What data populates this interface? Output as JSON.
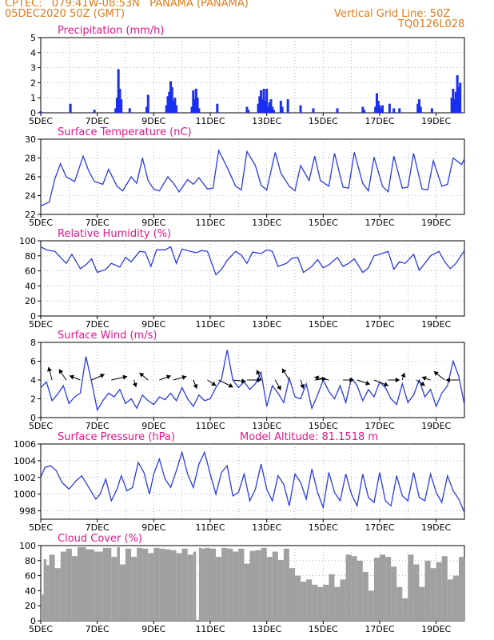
{
  "header": {
    "line1_left": "CPTEC:   079:41W-08:53N   PANAMA (PANAMA)",
    "line2_left": "05DEC2020 50Z (GMT)",
    "line2_right": "Vertical Grid Line: 50Z",
    "line3_right": "TQ0126L028"
  },
  "colors": {
    "header": "#e07b1a",
    "title": "#e0168c",
    "line": "#2b3ce0",
    "bar": "#1a2ff0",
    "cloud": "#a0a0a0",
    "grid": "#888888",
    "arrow": "#000000"
  },
  "x_labels": [
    "5DEC",
    "7DEC",
    "9DEC",
    "11DEC",
    "13DEC",
    "15DEC",
    "17DEC",
    "19DEC"
  ],
  "chart_data": [
    {
      "type": "bar",
      "title": "Precipitation (mm/h)",
      "ylim": [
        0,
        5
      ],
      "yticks": [
        0,
        1,
        2,
        3,
        4,
        5
      ],
      "x_range_days": [
        5,
        20
      ],
      "x": [
        5.0,
        6.05,
        6.9,
        7.65,
        7.7,
        7.75,
        7.8,
        7.85,
        8.15,
        8.75,
        8.8,
        9.45,
        9.5,
        9.55,
        9.6,
        9.65,
        9.7,
        9.75,
        9.8,
        10.35,
        10.4,
        10.45,
        10.5,
        10.55,
        10.6,
        11.25,
        12.3,
        12.35,
        12.7,
        12.75,
        12.8,
        12.85,
        12.9,
        12.95,
        13.0,
        13.05,
        13.1,
        13.15,
        13.2,
        13.25,
        13.5,
        13.55,
        13.75,
        14.2,
        14.65,
        15.5,
        16.4,
        16.45,
        16.85,
        16.9,
        16.95,
        17.0,
        17.05,
        17.1,
        17.35,
        17.5,
        17.7,
        18.35,
        18.4,
        18.45,
        18.85,
        19.55,
        19.6,
        19.65,
        19.7,
        19.75,
        19.8,
        19.85
      ],
      "values": [
        0.1,
        0.6,
        0.2,
        0.3,
        1.0,
        2.9,
        1.6,
        0.9,
        0.3,
        0.4,
        1.2,
        0.5,
        1.1,
        1.4,
        2.1,
        1.7,
        0.8,
        1.0,
        0.5,
        0.4,
        1.5,
        0.9,
        1.6,
        1.0,
        0.3,
        0.6,
        0.4,
        0.2,
        0.6,
        1.1,
        1.5,
        0.9,
        1.6,
        0.8,
        1.6,
        0.4,
        0.7,
        0.9,
        0.4,
        0.2,
        0.8,
        0.4,
        0.9,
        0.5,
        0.3,
        0.3,
        0.4,
        0.2,
        0.4,
        1.3,
        0.8,
        0.5,
        0.3,
        0.5,
        0.6,
        0.3,
        0.3,
        0.6,
        0.9,
        0.4,
        0.3,
        1.0,
        1.6,
        0.9,
        1.4,
        2.5,
        1.7,
        2.0
      ]
    },
    {
      "type": "line",
      "title": "Surface Temperature (nC)",
      "ylim": [
        22,
        30
      ],
      "yticks": [
        22,
        24,
        26,
        28,
        30
      ],
      "x": [
        5.0,
        5.3,
        5.5,
        5.7,
        5.9,
        6.2,
        6.5,
        6.7,
        6.9,
        7.2,
        7.4,
        7.7,
        7.9,
        8.2,
        8.4,
        8.6,
        8.8,
        9.0,
        9.2,
        9.5,
        9.7,
        9.9,
        10.2,
        10.4,
        10.6,
        10.9,
        11.1,
        11.3,
        11.6,
        11.9,
        12.1,
        12.3,
        12.6,
        12.8,
        13.0,
        13.3,
        13.5,
        13.8,
        14.0,
        14.2,
        14.5,
        14.7,
        14.9,
        15.2,
        15.4,
        15.7,
        15.9,
        16.1,
        16.4,
        16.6,
        16.8,
        17.1,
        17.3,
        17.5,
        17.8,
        18.0,
        18.2,
        18.5,
        18.7,
        18.9,
        19.2,
        19.4,
        19.6,
        19.9,
        20.0
      ],
      "values": [
        22.9,
        23.3,
        25.8,
        27.4,
        26.0,
        25.5,
        28.2,
        26.6,
        25.5,
        25.2,
        26.8,
        25.0,
        24.5,
        26.0,
        25.3,
        28.0,
        25.6,
        24.7,
        24.5,
        26.0,
        25.3,
        24.4,
        25.7,
        25.2,
        25.9,
        24.7,
        24.8,
        28.8,
        27.0,
        25.0,
        24.6,
        28.7,
        27.2,
        25.1,
        24.6,
        28.6,
        26.4,
        25.0,
        24.5,
        27.2,
        25.6,
        28.2,
        25.6,
        25.0,
        28.5,
        24.9,
        24.8,
        28.6,
        25.3,
        24.5,
        28.1,
        25.0,
        24.4,
        28.2,
        24.8,
        24.9,
        28.5,
        24.7,
        24.6,
        27.7,
        25.0,
        25.2,
        28.0,
        27.3,
        27.9
      ]
    },
    {
      "type": "line",
      "title": "Relative Humidity (%)",
      "ylim": [
        0,
        100
      ],
      "yticks": [
        0,
        20,
        40,
        60,
        80,
        100
      ],
      "x": [
        5.0,
        5.2,
        5.5,
        5.7,
        5.9,
        6.1,
        6.4,
        6.6,
        6.8,
        7.0,
        7.3,
        7.5,
        7.8,
        8.0,
        8.2,
        8.5,
        8.7,
        8.9,
        9.1,
        9.4,
        9.6,
        9.8,
        10.0,
        10.3,
        10.5,
        10.7,
        10.9,
        11.2,
        11.4,
        11.6,
        11.9,
        12.1,
        12.3,
        12.5,
        12.8,
        13.0,
        13.2,
        13.4,
        13.7,
        13.9,
        14.1,
        14.3,
        14.6,
        14.8,
        15.0,
        15.2,
        15.5,
        15.7,
        15.9,
        16.1,
        16.4,
        16.6,
        16.8,
        17.0,
        17.3,
        17.5,
        17.7,
        17.9,
        18.2,
        18.4,
        18.6,
        18.8,
        19.1,
        19.3,
        19.5,
        19.7,
        20.0
      ],
      "values": [
        92,
        88,
        86,
        78,
        70,
        82,
        63,
        68,
        76,
        58,
        62,
        70,
        65,
        78,
        72,
        86,
        85,
        66,
        88,
        88,
        92,
        70,
        89,
        86,
        84,
        87,
        86,
        55,
        62,
        74,
        86,
        81,
        70,
        85,
        83,
        88,
        86,
        66,
        70,
        77,
        78,
        58,
        66,
        75,
        64,
        68,
        78,
        66,
        70,
        76,
        58,
        64,
        80,
        82,
        86,
        62,
        72,
        70,
        82,
        61,
        70,
        80,
        86,
        72,
        63,
        70,
        87
      ]
    },
    {
      "type": "line",
      "title": "Surface Wind (m/s)",
      "ylim": [
        0,
        8
      ],
      "yticks": [
        0,
        2,
        4,
        6,
        8
      ],
      "x": [
        5.0,
        5.2,
        5.4,
        5.6,
        5.8,
        6.0,
        6.2,
        6.4,
        6.6,
        6.8,
        7.0,
        7.2,
        7.4,
        7.6,
        7.8,
        8.0,
        8.2,
        8.4,
        8.6,
        8.8,
        9.0,
        9.2,
        9.4,
        9.6,
        9.8,
        10.0,
        10.2,
        10.4,
        10.6,
        10.8,
        11.0,
        11.2,
        11.4,
        11.6,
        11.8,
        12.0,
        12.2,
        12.4,
        12.6,
        12.8,
        13.0,
        13.2,
        13.4,
        13.6,
        13.8,
        14.0,
        14.2,
        14.4,
        14.6,
        14.8,
        15.0,
        15.2,
        15.4,
        15.6,
        15.8,
        16.0,
        16.2,
        16.4,
        16.6,
        16.8,
        17.0,
        17.2,
        17.4,
        17.6,
        17.8,
        18.0,
        18.2,
        18.4,
        18.6,
        18.8,
        19.0,
        19.2,
        19.4,
        19.6,
        19.8,
        20.0
      ],
      "values": [
        3.2,
        3.8,
        1.8,
        2.5,
        3.4,
        1.5,
        2.2,
        2.6,
        6.5,
        3.8,
        0.8,
        1.8,
        2.6,
        2.2,
        3.0,
        1.5,
        2.0,
        1.0,
        2.4,
        1.8,
        1.4,
        2.2,
        1.9,
        2.6,
        1.8,
        3.2,
        2.0,
        1.2,
        2.4,
        1.8,
        2.0,
        3.2,
        4.1,
        7.2,
        4.0,
        3.2,
        3.8,
        3.0,
        3.6,
        4.8,
        1.2,
        3.4,
        2.6,
        1.6,
        4.2,
        2.2,
        2.0,
        3.6,
        1.0,
        2.4,
        4.0,
        2.8,
        2.0,
        3.4,
        1.6,
        4.2,
        3.4,
        1.8,
        3.0,
        2.2,
        3.8,
        3.2,
        2.0,
        1.4,
        3.6,
        1.6,
        2.4,
        4.0,
        2.2,
        3.0,
        1.2,
        2.6,
        3.4,
        6.0,
        4.4,
        1.4
      ],
      "vectors_x": [
        5.4,
        5.9,
        6.4,
        6.8,
        7.5,
        8.3,
        8.8,
        9.2,
        9.7,
        10.4,
        10.9,
        11.3,
        11.8,
        12.3,
        12.8,
        13.3,
        13.8,
        14.2,
        14.7,
        15.2,
        15.7,
        16.2,
        16.8,
        17.3,
        17.8,
        18.3,
        18.8,
        19.3,
        19.8
      ],
      "vectors_u": [
        -0.5,
        -1.0,
        -1.5,
        1.8,
        2.2,
        0.3,
        -1.2,
        1.6,
        1.8,
        0.5,
        1.2,
        2.0,
        1.8,
        2.0,
        -0.6,
        0.8,
        -1.0,
        0.4,
        1.6,
        -2.0,
        1.5,
        1.8,
        2.0,
        1.6,
        0.3,
        1.2,
        -1.2,
        -1.5,
        -1.8
      ],
      "vectors_v": [
        1.8,
        1.5,
        0.6,
        0.8,
        0.5,
        -1.0,
        1.0,
        0.6,
        0.5,
        -1.2,
        -0.8,
        -1.0,
        -0.2,
        0.0,
        1.4,
        -1.4,
        1.6,
        -1.2,
        0.2,
        0.4,
        0.0,
        -0.6,
        -0.8,
        0.0,
        1.0,
        -0.8,
        0.4,
        1.2,
        0.0
      ]
    },
    {
      "type": "line",
      "title": "Surface Pressure (hPa)",
      "subtitle": "Model Altitude: 81.1518 m",
      "ylim": [
        997,
        1006
      ],
      "yticks": [
        998,
        1000,
        1002,
        1004,
        1006
      ],
      "x": [
        5.0,
        5.15,
        5.35,
        5.55,
        5.75,
        6.0,
        6.25,
        6.45,
        6.7,
        6.95,
        7.1,
        7.3,
        7.5,
        7.7,
        7.85,
        8.05,
        8.25,
        8.45,
        8.65,
        8.85,
        9.0,
        9.2,
        9.4,
        9.6,
        9.8,
        10.0,
        10.2,
        10.4,
        10.6,
        10.8,
        11.0,
        11.2,
        11.4,
        11.6,
        11.8,
        12.0,
        12.2,
        12.4,
        12.6,
        12.8,
        13.0,
        13.2,
        13.4,
        13.6,
        13.8,
        14.0,
        14.2,
        14.4,
        14.6,
        14.8,
        15.0,
        15.2,
        15.4,
        15.6,
        15.8,
        16.0,
        16.2,
        16.4,
        16.6,
        16.8,
        17.0,
        17.2,
        17.4,
        17.6,
        17.8,
        18.0,
        18.2,
        18.4,
        18.6,
        18.8,
        19.0,
        19.2,
        19.4,
        19.6,
        19.8,
        20.0
      ],
      "values": [
        1002.0,
        1003.2,
        1003.4,
        1002.8,
        1001.4,
        1000.6,
        1001.6,
        1002.2,
        1000.8,
        999.4,
        1000.0,
        1001.8,
        999.2,
        1000.6,
        1002.2,
        1000.4,
        1000.8,
        1003.8,
        1002.6,
        1000.0,
        1002.4,
        1004.2,
        1001.8,
        1000.8,
        1002.8,
        1005.0,
        1002.4,
        1000.8,
        1003.6,
        1005.0,
        1002.4,
        1000.0,
        1002.6,
        1003.4,
        999.8,
        1000.2,
        1002.4,
        999.2,
        1000.6,
        1003.6,
        1000.6,
        999.2,
        1002.2,
        1001.2,
        998.6,
        1002.4,
        1001.4,
        999.4,
        1003.0,
        1000.2,
        998.4,
        1002.6,
        1000.2,
        999.2,
        1002.4,
        1000.0,
        998.6,
        1002.4,
        999.6,
        999.0,
        1002.6,
        999.2,
        998.6,
        1002.2,
        999.8,
        999.2,
        1002.6,
        999.6,
        999.2,
        1002.4,
        1000.2,
        999.0,
        1002.2,
        1000.4,
        999.4,
        997.8
      ]
    },
    {
      "type": "area",
      "title": "Cloud Cover (%)",
      "ylim": [
        0,
        100
      ],
      "yticks": [
        0,
        20,
        40,
        60,
        80,
        100
      ],
      "x": [
        5.0,
        5.1,
        5.2,
        5.3,
        5.5,
        5.7,
        5.9,
        6.1,
        6.3,
        6.6,
        6.9,
        7.2,
        7.5,
        7.7,
        7.8,
        8.0,
        8.2,
        8.4,
        8.6,
        8.8,
        9.0,
        9.2,
        9.4,
        9.6,
        9.8,
        10.0,
        10.2,
        10.4,
        10.5,
        10.6,
        10.7,
        10.8,
        11.0,
        11.2,
        11.4,
        11.6,
        11.8,
        12.0,
        12.2,
        12.4,
        12.6,
        12.8,
        13.0,
        13.2,
        13.4,
        13.6,
        13.8,
        14.0,
        14.2,
        14.4,
        14.6,
        14.8,
        15.0,
        15.2,
        15.4,
        15.6,
        15.8,
        16.0,
        16.2,
        16.4,
        16.6,
        16.8,
        17.0,
        17.2,
        17.4,
        17.6,
        17.8,
        18.0,
        18.2,
        18.4,
        18.6,
        18.8,
        19.0,
        19.2,
        19.4,
        19.6,
        19.8,
        20.0
      ],
      "values": [
        35,
        82,
        74,
        88,
        70,
        92,
        96,
        86,
        98,
        95,
        92,
        97,
        85,
        98,
        75,
        96,
        85,
        97,
        96,
        90,
        97,
        96,
        95,
        94,
        90,
        96,
        88,
        92,
        0,
        97,
        96,
        97,
        96,
        85,
        97,
        96,
        92,
        96,
        76,
        93,
        94,
        97,
        85,
        92,
        81,
        96,
        70,
        60,
        52,
        55,
        48,
        45,
        48,
        62,
        45,
        55,
        88,
        86,
        80,
        65,
        40,
        84,
        88,
        85,
        72,
        45,
        30,
        88,
        75,
        45,
        80,
        70,
        78,
        86,
        55,
        60,
        85,
        82
      ]
    }
  ]
}
